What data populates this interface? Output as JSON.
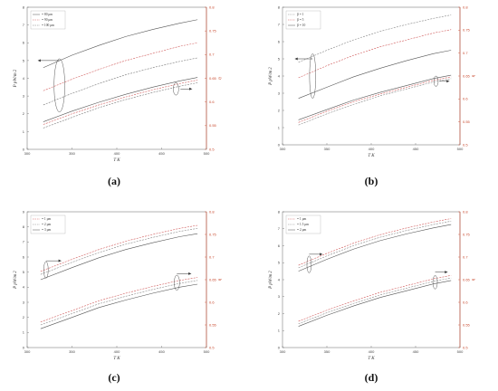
{
  "captions": [
    "(a)",
    "(b)",
    "(c)",
    "(d)"
  ],
  "colors": {
    "left_axis": "#444444",
    "right_axis": "#c8472b",
    "ellipse": "#555555",
    "arrow": "#333333"
  },
  "chart_data": [
    {
      "type": "line",
      "panel": "a",
      "xlim": [
        300,
        500
      ],
      "ylim": [
        0,
        8
      ],
      "y2lim": [
        0.5,
        0.8
      ],
      "xticks": [
        "300",
        "350",
        "400",
        "450",
        "500"
      ],
      "yticks": [
        "0",
        "1",
        "2",
        "3",
        "4",
        "5",
        "6",
        "7",
        "8"
      ],
      "y2ticks": [
        "0.5",
        "0.55",
        "0.6",
        "0.65",
        "0.7",
        "0.75",
        "0.8"
      ],
      "xlabel": "T    K",
      "ylabel": "P    pW/m    2",
      "y2label": "η",
      "legend": [
        "= 80 μm",
        "= 90 μm",
        "= 100 μm"
      ],
      "series": [
        {
          "axis": "left",
          "style": "solid",
          "color": "#555555",
          "x": [
            318,
            350,
            380,
            410,
            440,
            470,
            490
          ],
          "y": [
            4.6,
            5.3,
            5.85,
            6.35,
            6.75,
            7.1,
            7.3
          ]
        },
        {
          "axis": "left",
          "style": "dashed",
          "color": "#d05a5a",
          "x": [
            318,
            350,
            380,
            410,
            440,
            470,
            490
          ],
          "y": [
            3.3,
            3.95,
            4.5,
            5.0,
            5.4,
            5.8,
            6.0
          ]
        },
        {
          "axis": "left",
          "style": "dashed",
          "color": "#777777",
          "x": [
            318,
            350,
            380,
            410,
            440,
            470,
            490
          ],
          "y": [
            2.5,
            3.15,
            3.7,
            4.2,
            4.6,
            4.95,
            5.15
          ]
        },
        {
          "axis": "left",
          "style": "solid",
          "color": "#555555",
          "x": [
            318,
            350,
            380,
            410,
            440,
            470,
            490
          ],
          "y": [
            1.55,
            2.15,
            2.65,
            3.1,
            3.5,
            3.85,
            4.05
          ]
        },
        {
          "axis": "left",
          "style": "dashed",
          "color": "#d05a5a",
          "x": [
            318,
            350,
            380,
            410,
            440,
            470,
            490
          ],
          "y": [
            1.4,
            2.0,
            2.5,
            2.95,
            3.35,
            3.7,
            3.9
          ]
        },
        {
          "axis": "left",
          "style": "dashed",
          "color": "#777777",
          "x": [
            318,
            350,
            380,
            410,
            440,
            470,
            490
          ],
          "y": [
            1.2,
            1.8,
            2.35,
            2.8,
            3.2,
            3.55,
            3.75
          ]
        }
      ],
      "ellipses": [
        {
          "cx": 336,
          "cy": 3.6,
          "rx": 6,
          "ry": 1.5,
          "arrow_from": [
            336,
            5.0
          ],
          "arrow_to": [
            312,
            5.0
          ]
        },
        {
          "cx": 466,
          "cy": 3.4,
          "rx": 3,
          "ry": 0.35,
          "arrow_from": [
            471,
            3.4
          ],
          "arrow_to": [
            484,
            3.4
          ]
        }
      ]
    },
    {
      "type": "line",
      "panel": "b",
      "xlim": [
        300,
        500
      ],
      "ylim": [
        0,
        8
      ],
      "y2lim": [
        0.5,
        0.8
      ],
      "xticks": [
        "300",
        "350",
        "400",
        "450",
        "500"
      ],
      "yticks": [
        "0",
        "1",
        "2",
        "3",
        "4",
        "5",
        "6",
        "7",
        "8"
      ],
      "y2ticks": [
        "0.5",
        "0.55",
        "0.6",
        "0.65",
        "0.7",
        "0.75",
        "0.8"
      ],
      "xlabel": "T    K",
      "ylabel": "P    pW/m    2",
      "y2label": "η",
      "legend": [
        "β = 1",
        "β = 5",
        "β = 10"
      ],
      "series": [
        {
          "axis": "left",
          "style": "dashed",
          "color": "#888888",
          "x": [
            318,
            350,
            380,
            410,
            440,
            470,
            490
          ],
          "y": [
            4.8,
            5.5,
            6.1,
            6.6,
            7.0,
            7.35,
            7.55
          ]
        },
        {
          "axis": "left",
          "style": "dashed",
          "color": "#d05a5a",
          "x": [
            318,
            350,
            380,
            410,
            440,
            470,
            490
          ],
          "y": [
            3.9,
            4.6,
            5.2,
            5.7,
            6.1,
            6.5,
            6.7
          ]
        },
        {
          "axis": "left",
          "style": "solid",
          "color": "#555555",
          "x": [
            318,
            350,
            380,
            410,
            440,
            470,
            490
          ],
          "y": [
            2.7,
            3.35,
            3.95,
            4.45,
            4.9,
            5.3,
            5.5
          ]
        },
        {
          "axis": "left",
          "style": "solid",
          "color": "#555555",
          "x": [
            318,
            350,
            380,
            410,
            440,
            470,
            490
          ],
          "y": [
            1.45,
            2.05,
            2.6,
            3.05,
            3.45,
            3.85,
            4.05
          ]
        },
        {
          "axis": "left",
          "style": "dashed",
          "color": "#d05a5a",
          "x": [
            318,
            350,
            380,
            410,
            440,
            470,
            490
          ],
          "y": [
            1.3,
            1.95,
            2.5,
            2.95,
            3.35,
            3.75,
            3.95
          ]
        },
        {
          "axis": "left",
          "style": "dashed",
          "color": "#888888",
          "x": [
            318,
            350,
            380,
            410,
            440,
            470,
            490
          ],
          "y": [
            1.15,
            1.8,
            2.35,
            2.85,
            3.25,
            3.65,
            3.85
          ]
        }
      ],
      "ellipses": [
        {
          "cx": 334,
          "cy": 4.0,
          "rx": 3.5,
          "ry": 1.3,
          "arrow_from": [
            334,
            5.0
          ],
          "arrow_to": [
            314,
            5.0
          ]
        },
        {
          "cx": 473,
          "cy": 3.7,
          "rx": 2.5,
          "ry": 0.3,
          "arrow_from": [
            477,
            3.7
          ],
          "arrow_to": [
            488,
            3.7
          ]
        }
      ]
    },
    {
      "type": "line",
      "panel": "c",
      "xlim": [
        300,
        500
      ],
      "ylim": [
        0,
        9
      ],
      "y2lim": [
        0.5,
        0.8
      ],
      "xticks": [
        "300",
        "350",
        "400",
        "450",
        "500"
      ],
      "yticks": [
        "0",
        "1",
        "2",
        "3",
        "4",
        "5",
        "6",
        "7",
        "8",
        "9"
      ],
      "y2ticks": [
        "0.5",
        "0.55",
        "0.6",
        "0.65",
        "0.7",
        "0.75",
        "0.8"
      ],
      "xlabel": "T    K",
      "ylabel": "P    pW/m    2",
      "y2label": "η",
      "legend": [
        "= 1 μm",
        "= 2 μm",
        "= 3 μm"
      ],
      "series": [
        {
          "axis": "left",
          "style": "dashed",
          "color": "#d05a5a",
          "x": [
            315,
            350,
            380,
            410,
            440,
            470,
            490
          ],
          "y": [
            5.05,
            5.85,
            6.5,
            7.05,
            7.5,
            7.9,
            8.1
          ]
        },
        {
          "axis": "left",
          "style": "dashed",
          "color": "#888888",
          "x": [
            315,
            350,
            380,
            410,
            440,
            470,
            490
          ],
          "y": [
            4.85,
            5.65,
            6.3,
            6.85,
            7.3,
            7.7,
            7.9
          ]
        },
        {
          "axis": "left",
          "style": "solid",
          "color": "#555555",
          "x": [
            315,
            350,
            380,
            410,
            440,
            470,
            490
          ],
          "y": [
            4.5,
            5.3,
            5.95,
            6.5,
            6.95,
            7.35,
            7.55
          ]
        },
        {
          "axis": "left",
          "style": "dashed",
          "color": "#d05a5a",
          "x": [
            315,
            350,
            380,
            410,
            440,
            470,
            490
          ],
          "y": [
            1.7,
            2.45,
            3.1,
            3.6,
            4.05,
            4.45,
            4.65
          ]
        },
        {
          "axis": "left",
          "style": "dashed",
          "color": "#888888",
          "x": [
            315,
            350,
            380,
            410,
            440,
            470,
            490
          ],
          "y": [
            1.5,
            2.25,
            2.9,
            3.4,
            3.85,
            4.25,
            4.45
          ]
        },
        {
          "axis": "left",
          "style": "solid",
          "color": "#555555",
          "x": [
            315,
            350,
            380,
            410,
            440,
            470,
            490
          ],
          "y": [
            1.25,
            2.0,
            2.65,
            3.15,
            3.6,
            4.0,
            4.2
          ]
        }
      ],
      "ellipses": [
        {
          "cx": 321,
          "cy": 5.15,
          "rx": 2.5,
          "ry": 0.55,
          "arrow_from": [
            321,
            5.75
          ],
          "arrow_to": [
            338,
            5.75
          ]
        },
        {
          "cx": 467,
          "cy": 4.3,
          "rx": 3,
          "ry": 0.5,
          "arrow_from": [
            467,
            4.9
          ],
          "arrow_to": [
            483,
            4.9
          ]
        }
      ]
    },
    {
      "type": "line",
      "panel": "d",
      "xlim": [
        300,
        500
      ],
      "ylim": [
        0,
        8
      ],
      "y2lim": [
        0.5,
        0.8
      ],
      "xticks": [
        "300",
        "350",
        "400",
        "450",
        "500"
      ],
      "yticks": [
        "0",
        "1",
        "2",
        "3",
        "4",
        "5",
        "6",
        "7",
        "8"
      ],
      "y2ticks": [
        "0.5",
        "0.55",
        "0.6",
        "0.65",
        "0.7",
        "0.75",
        "0.8"
      ],
      "xlabel": "T    K",
      "ylabel": "P    pW/m    2",
      "y2label": "η",
      "legend": [
        "= 1 μm",
        "= 1.5 μm",
        "= 2 μm"
      ],
      "series": [
        {
          "axis": "left",
          "style": "dashed",
          "color": "#d05a5a",
          "x": [
            318,
            350,
            380,
            410,
            440,
            470,
            490
          ],
          "y": [
            4.85,
            5.55,
            6.15,
            6.65,
            7.05,
            7.4,
            7.6
          ]
        },
        {
          "axis": "left",
          "style": "dashed",
          "color": "#888888",
          "x": [
            318,
            350,
            380,
            410,
            440,
            470,
            490
          ],
          "y": [
            4.7,
            5.4,
            6.0,
            6.5,
            6.9,
            7.25,
            7.45
          ]
        },
        {
          "axis": "left",
          "style": "solid",
          "color": "#555555",
          "x": [
            318,
            350,
            380,
            410,
            440,
            470,
            490
          ],
          "y": [
            4.5,
            5.2,
            5.8,
            6.3,
            6.7,
            7.05,
            7.25
          ]
        },
        {
          "axis": "left",
          "style": "dashed",
          "color": "#d05a5a",
          "x": [
            318,
            350,
            380,
            410,
            440,
            470,
            490
          ],
          "y": [
            1.55,
            2.2,
            2.75,
            3.25,
            3.65,
            4.05,
            4.25
          ]
        },
        {
          "axis": "left",
          "style": "dashed",
          "color": "#888888",
          "x": [
            318,
            350,
            380,
            410,
            440,
            470,
            490
          ],
          "y": [
            1.4,
            2.05,
            2.6,
            3.1,
            3.5,
            3.9,
            4.1
          ]
        },
        {
          "axis": "left",
          "style": "solid",
          "color": "#555555",
          "x": [
            318,
            350,
            380,
            410,
            440,
            470,
            490
          ],
          "y": [
            1.25,
            1.9,
            2.45,
            2.95,
            3.35,
            3.75,
            3.95
          ]
        }
      ],
      "ellipses": [
        {
          "cx": 330,
          "cy": 4.9,
          "rx": 2.5,
          "ry": 0.5,
          "arrow_from": [
            330,
            5.5
          ],
          "arrow_to": [
            345,
            5.5
          ]
        },
        {
          "cx": 472,
          "cy": 3.85,
          "rx": 2.5,
          "ry": 0.4,
          "arrow_from": [
            472,
            4.45
          ],
          "arrow_to": [
            486,
            4.45
          ]
        }
      ]
    }
  ]
}
